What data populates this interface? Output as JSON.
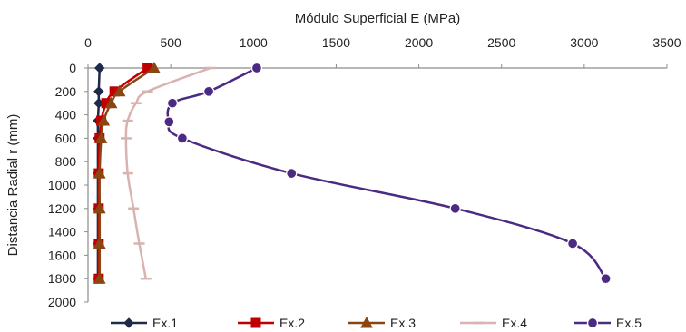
{
  "chart_data": {
    "type": "line",
    "title": "",
    "xlabel": "Módulo Superficial E (MPa)",
    "ylabel": "Distancia Radial r (mm)",
    "x_axis_position": "top",
    "y_axis_inverted": true,
    "xlim": [
      0,
      3500
    ],
    "ylim": [
      0,
      2000
    ],
    "xticks": [
      0,
      500,
      1000,
      1500,
      2000,
      2500,
      3000,
      3500
    ],
    "yticks": [
      0,
      200,
      400,
      600,
      800,
      1000,
      1200,
      1400,
      1600,
      1800,
      2000
    ],
    "grid": false,
    "legend_position": "bottom",
    "series": [
      {
        "name": "Ex.1",
        "color": "#1f2a4a",
        "marker": "diamond",
        "points": [
          [
            70,
            0
          ],
          [
            65,
            200
          ],
          [
            65,
            300
          ],
          [
            60,
            450
          ],
          [
            60,
            600
          ],
          [
            60,
            900
          ],
          [
            60,
            1200
          ],
          [
            60,
            1500
          ],
          [
            60,
            1800
          ]
        ]
      },
      {
        "name": "Ex.2",
        "color": "#c00000",
        "marker": "square",
        "points": [
          [
            360,
            0
          ],
          [
            160,
            200
          ],
          [
            110,
            300
          ],
          [
            80,
            450
          ],
          [
            70,
            600
          ],
          [
            65,
            900
          ],
          [
            65,
            1200
          ],
          [
            65,
            1500
          ],
          [
            65,
            1800
          ]
        ]
      },
      {
        "name": "Ex.3",
        "color": "#8b4513",
        "marker": "triangle",
        "points": [
          [
            400,
            0
          ],
          [
            190,
            200
          ],
          [
            140,
            300
          ],
          [
            95,
            450
          ],
          [
            80,
            600
          ],
          [
            70,
            900
          ],
          [
            70,
            1200
          ],
          [
            70,
            1500
          ],
          [
            70,
            1800
          ]
        ]
      },
      {
        "name": "Ex.4",
        "color": "#d9b3b0",
        "marker": "dash",
        "points": [
          [
            740,
            0
          ],
          [
            360,
            200
          ],
          [
            290,
            300
          ],
          [
            240,
            450
          ],
          [
            230,
            600
          ],
          [
            240,
            900
          ],
          [
            275,
            1200
          ],
          [
            310,
            1500
          ],
          [
            350,
            1800
          ]
        ]
      },
      {
        "name": "Ex.5",
        "color": "#4b2a82",
        "marker": "circle",
        "points": [
          [
            1020,
            0
          ],
          [
            730,
            200
          ],
          [
            510,
            300
          ],
          [
            490,
            460
          ],
          [
            570,
            600
          ],
          [
            1230,
            900
          ],
          [
            2220,
            1200
          ],
          [
            2930,
            1500
          ],
          [
            3130,
            1800
          ]
        ]
      }
    ]
  }
}
